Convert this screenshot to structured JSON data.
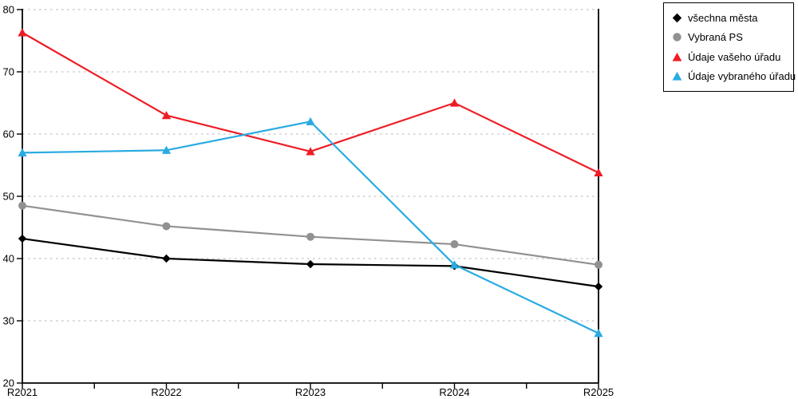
{
  "chart_data": {
    "type": "line",
    "title": "",
    "xlabel": "",
    "ylabel": "",
    "categories": [
      "R2021",
      "R2022",
      "R2023",
      "R2024",
      "R2025"
    ],
    "series": [
      {
        "name": "všechna města",
        "marker": "diamond",
        "color": "#000000",
        "values": [
          43.2,
          40.0,
          39.1,
          38.8,
          35.5
        ]
      },
      {
        "name": "Vybraná PS",
        "marker": "circle",
        "color": "#919191",
        "values": [
          48.5,
          45.2,
          43.5,
          42.3,
          39.0
        ]
      },
      {
        "name": "Údaje vašeho úřadu",
        "marker": "triangle",
        "color": "#ee1d25",
        "values": [
          76.3,
          63.0,
          57.2,
          65.0,
          53.8
        ]
      },
      {
        "name": "Údaje vybraného úřadu",
        "marker": "triangle",
        "color": "#29abe2",
        "values": [
          57.0,
          57.4,
          62.0,
          39.0,
          28.0
        ]
      }
    ],
    "ylim": [
      20,
      80
    ],
    "yticks": [
      20,
      30,
      40,
      50,
      60,
      70,
      80
    ],
    "grid": "horizontal-dashed",
    "legend_position": "top-right"
  },
  "colors": {
    "background": "#ffffff",
    "axis": "#000000",
    "gridline": "#c4c4c4",
    "legend_border": "#000000"
  }
}
